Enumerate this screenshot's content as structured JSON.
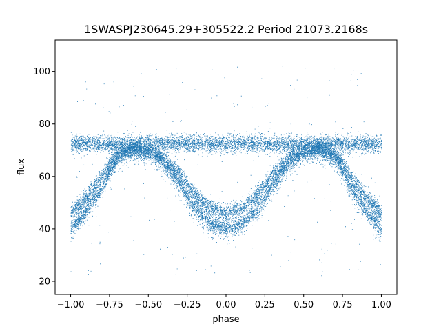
{
  "chart_data": {
    "type": "scatter",
    "title": "1SWASPJ230645.29+305522.2 Period 21073.2168s",
    "xlabel": "phase",
    "ylabel": "flux",
    "xlim": [
      -1.1,
      1.1
    ],
    "ylim": [
      15,
      112
    ],
    "xticks": [
      -1.0,
      -0.75,
      -0.5,
      -0.25,
      0.0,
      0.25,
      0.5,
      0.75,
      1.0
    ],
    "xtick_labels": [
      "−1.00",
      "−0.75",
      "−0.50",
      "−0.25",
      "0.00",
      "0.25",
      "0.50",
      "0.75",
      "1.00"
    ],
    "yticks": [
      20,
      40,
      60,
      80,
      100
    ],
    "ytick_labels": [
      "20",
      "40",
      "60",
      "80",
      "100"
    ],
    "grid": false,
    "point_color": "#1f77b4",
    "series": [
      {
        "description_of_shape": "light curve folded over two cycles",
        "baseline_flux": 72.5,
        "phase": [
          -1.0,
          -0.9,
          -0.8,
          -0.75,
          -0.7,
          -0.6,
          -0.5,
          -0.4,
          -0.3,
          -0.25,
          -0.2,
          -0.1,
          0.0,
          0.1,
          0.2,
          0.25,
          0.3,
          0.4,
          0.5,
          0.6,
          0.7,
          0.75,
          0.8,
          0.9,
          1.0
        ],
        "flux_upper_branch": [
          72.5,
          72.5,
          72.5,
          72.5,
          72.5,
          72.5,
          72.5,
          72.5,
          72.5,
          72.5,
          72.5,
          72.5,
          72.5,
          72.5,
          72.5,
          72.5,
          72.5,
          72.5,
          72.5,
          72.5,
          72.5,
          72.5,
          72.5,
          72.5,
          72.5
        ],
        "flux_eclipse_branch_a": [
          46,
          52,
          60,
          65,
          69,
          71,
          70,
          67,
          61,
          57,
          53,
          48,
          46,
          48,
          53,
          57,
          61,
          67,
          70,
          71,
          69,
          65,
          60,
          52,
          46
        ],
        "flux_eclipse_branch_b": [
          40,
          47,
          56,
          62,
          67,
          70,
          69,
          65,
          57,
          52,
          48,
          42,
          40,
          42,
          48,
          52,
          57,
          65,
          69,
          70,
          67,
          62,
          56,
          47,
          40
        ]
      }
    ]
  }
}
